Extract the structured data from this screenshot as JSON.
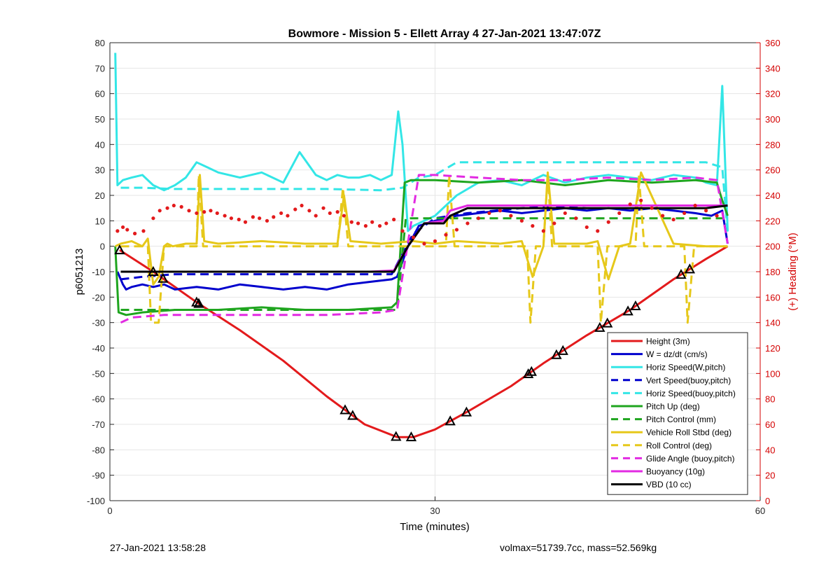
{
  "chart_data": {
    "type": "line",
    "title": "Bowmore - Mission 5 - Ellett Array 4 27-Jan-2021 13:47:07Z",
    "xlabel": "Time (minutes)",
    "ylabel": "p6051213",
    "y2label": "(+) Heading (°M)",
    "xlim": [
      0,
      60
    ],
    "ylim": [
      -100,
      80
    ],
    "y2lim": [
      0,
      360
    ],
    "xticks": [
      0,
      30,
      60
    ],
    "yticks": [
      80,
      70,
      60,
      50,
      40,
      30,
      20,
      10,
      0,
      -10,
      -20,
      -30,
      -40,
      -50,
      -60,
      -70,
      -80,
      -90,
      -100
    ],
    "y2ticks": [
      360,
      340,
      320,
      300,
      280,
      260,
      240,
      220,
      200,
      180,
      160,
      140,
      120,
      100,
      80,
      60,
      40,
      20,
      0
    ],
    "grid": "on",
    "legend_position": "bottom-right",
    "colors": {
      "red": "#e31a1c",
      "blue": "#0000cd",
      "cyan": "#33e6e6",
      "green": "#1fa51f",
      "yellow": "#e6c81a",
      "magenta": "#e22ae2",
      "black": "#000000",
      "heading_dots": "#e31a1c",
      "right_axis": "#d40000"
    },
    "series": [
      {
        "name": "Height (3m)",
        "color": "#e31a1c",
        "dash": false,
        "x": [
          0.9,
          4,
          8,
          12,
          16,
          20,
          23.5,
          26.5,
          28,
          30,
          33,
          37,
          40,
          44,
          48,
          52,
          55,
          57
        ],
        "y": [
          -1.5,
          -10,
          -22,
          -33,
          -45,
          -59,
          -70,
          -75,
          -75,
          -72,
          -65,
          -55,
          -46,
          -35,
          -25,
          -13,
          -5,
          0
        ]
      },
      {
        "name": "W = dz/dt (cm/s)",
        "color": "#0000cd",
        "dash": false,
        "x": [
          0.7,
          1.2,
          1.5,
          2,
          3,
          4,
          5,
          6,
          8,
          10,
          12,
          14,
          16,
          18,
          20,
          22,
          24,
          26,
          26.5,
          27.5,
          28.5,
          30,
          31,
          32,
          34,
          36,
          38,
          40,
          42,
          44,
          46,
          48,
          50,
          52,
          54,
          55.5,
          56.5,
          57
        ],
        "y": [
          -10,
          -15,
          -17,
          -16,
          -15,
          -16,
          -15,
          -17,
          -16,
          -17,
          -15,
          -16,
          -17,
          -16,
          -17,
          -15,
          -14,
          -13,
          -12,
          0,
          8,
          10,
          11,
          12,
          13,
          14,
          13,
          14,
          15,
          14,
          15,
          14,
          15,
          14,
          13,
          12,
          14,
          1
        ]
      },
      {
        "name": "Horiz Speed(W,pitch)",
        "color": "#33e6e6",
        "dash": false,
        "x": [
          0.5,
          0.7,
          1.2,
          2,
          3,
          4,
          5,
          6,
          7,
          8,
          9,
          10,
          12,
          14,
          16,
          17.5,
          19,
          20,
          21,
          22,
          23,
          24,
          25,
          26,
          26.6,
          27,
          27.5,
          28,
          29,
          30,
          32,
          34,
          36,
          38,
          40,
          42,
          44,
          46,
          48,
          50,
          52,
          54,
          55,
          56,
          56.5,
          57
        ],
        "y": [
          76,
          24,
          26,
          27,
          28,
          24,
          22,
          24,
          27,
          33,
          31,
          29,
          27,
          29,
          25,
          37,
          28,
          26,
          28,
          27,
          27,
          28,
          26,
          28,
          53,
          40,
          6,
          8,
          10,
          12,
          20,
          25,
          26,
          24,
          28,
          25,
          27,
          28,
          27,
          26,
          28,
          27,
          25,
          24,
          63,
          6
        ]
      },
      {
        "name": "Vert Speed(buoy,pitch)",
        "color": "#0000cd",
        "dash": true,
        "x": [
          1,
          3,
          6,
          10,
          15,
          20,
          26,
          28,
          30,
          33,
          38,
          44,
          50,
          55,
          57
        ],
        "y": [
          -13,
          -12,
          -11,
          -11,
          -11,
          -11,
          -11,
          5,
          11,
          13,
          15,
          16,
          16,
          16,
          16
        ]
      },
      {
        "name": "Horiz Speed(buoy,pitch)",
        "color": "#33e6e6",
        "dash": true,
        "x": [
          1,
          3,
          6,
          10,
          15,
          20,
          25,
          27,
          28.5,
          30,
          32,
          34,
          38,
          44,
          50,
          55,
          56.5,
          57
        ],
        "y": [
          23,
          23,
          22.5,
          22.5,
          22.5,
          22.5,
          22,
          23,
          27,
          28,
          33,
          33,
          33,
          33,
          33,
          33,
          31,
          5
        ]
      },
      {
        "name": "Pitch Up (deg)",
        "color": "#1fa51f",
        "dash": false,
        "x": [
          0.5,
          0.8,
          1.5,
          3,
          6,
          10,
          14,
          18,
          22,
          26,
          26.5,
          27.2,
          27.8,
          30,
          34,
          38,
          42,
          46,
          50,
          54,
          56,
          56.5,
          57
        ],
        "y": [
          0,
          -26,
          -27,
          -26,
          -25,
          -25,
          -24,
          -25,
          -25,
          -24,
          -22,
          25,
          26,
          26,
          25,
          26,
          24,
          26,
          25,
          26,
          25,
          18,
          12
        ]
      },
      {
        "name": "Pitch Control (mm)",
        "color": "#1fa51f",
        "dash": true,
        "x": [
          1,
          6,
          12,
          18,
          24,
          26.5,
          27.3,
          30,
          36,
          42,
          48,
          54,
          57
        ],
        "y": [
          -25,
          -25,
          -25,
          -25,
          -25,
          -25,
          11,
          11,
          11,
          11,
          11,
          11,
          11
        ]
      },
      {
        "name": "Vehicle Roll Stbd (deg)",
        "color": "#e6c81a",
        "dash": false,
        "x": [
          0.5,
          1,
          2,
          3,
          3.5,
          4,
          4.5,
          5,
          5.3,
          5.8,
          7,
          8,
          8.3,
          8.7,
          10,
          14,
          18,
          21,
          21.6,
          22.2,
          25,
          28,
          30,
          32,
          36,
          38,
          39,
          40,
          40.4,
          41,
          44,
          45,
          46,
          47,
          48,
          49,
          52,
          55,
          57
        ],
        "y": [
          0,
          1,
          2,
          0,
          3,
          -15,
          -12,
          0,
          1,
          0,
          1,
          1,
          28,
          2,
          1,
          2,
          1,
          1,
          20,
          2,
          1,
          2,
          1,
          2,
          1,
          2,
          -12,
          0,
          29,
          1,
          1,
          2,
          -13,
          0,
          1,
          29,
          1,
          0,
          0
        ]
      },
      {
        "name": "Roll Control (deg)",
        "color": "#e6c81a",
        "dash": true,
        "x": [
          1,
          3.5,
          3.8,
          4.5,
          5,
          8,
          8.2,
          8.6,
          10,
          21,
          21.5,
          22,
          25,
          31,
          31.3,
          31.8,
          38.5,
          38.8,
          39.3,
          40,
          40.4,
          40.8,
          45,
          45.3,
          45.9,
          48.5,
          48.8,
          49.3,
          53,
          53.3,
          53.9,
          57
        ],
        "y": [
          0,
          0,
          -30,
          -30,
          0,
          0,
          28,
          0,
          0,
          0,
          23,
          0,
          0,
          0,
          28,
          0,
          0,
          -30,
          0,
          0,
          28,
          0,
          0,
          -30,
          0,
          0,
          28,
          0,
          0,
          -30,
          0,
          0
        ]
      },
      {
        "name": "Glide Angle (buoy,pitch)",
        "color": "#e22ae2",
        "dash": true,
        "x": [
          1,
          2,
          5,
          10,
          15,
          20,
          25,
          26.5,
          28.5,
          30,
          34,
          38,
          42,
          46,
          50,
          54,
          56,
          57
        ],
        "y": [
          -30,
          -28,
          -27,
          -27,
          -27,
          -27,
          -26,
          -25,
          28,
          28,
          27,
          26,
          26,
          27,
          26,
          27,
          26,
          1
        ]
      },
      {
        "name": "Buoyancy (10g)",
        "color": "#e22ae2",
        "dash": false,
        "x": [
          1,
          6,
          12,
          18,
          24,
          26.2,
          27.5,
          29,
          30.8,
          31.4,
          33,
          38,
          44,
          50,
          55,
          57
        ],
        "y": [
          -10,
          -10,
          -10,
          -10,
          -10,
          -9.5,
          0,
          9,
          10,
          14,
          16,
          16,
          16,
          16,
          16,
          16
        ]
      },
      {
        "name": "VBD (10 cc)",
        "color": "#000000",
        "dash": false,
        "x": [
          1,
          6,
          12,
          18,
          24,
          26.2,
          27.5,
          29,
          30.8,
          31.4,
          33,
          38,
          44,
          50,
          55,
          57
        ],
        "y": [
          -10,
          -10,
          -10,
          -10,
          -10,
          -10,
          0,
          9,
          9,
          12,
          15,
          15,
          15,
          15,
          15,
          16
        ]
      }
    ],
    "markers_on_height": {
      "shape": "triangle",
      "x": [
        0.9,
        4,
        4.9,
        8,
        8.2,
        21.7,
        22.4,
        26.4,
        27.8,
        31.4,
        32.9,
        38.6,
        38.9,
        41.2,
        41.8,
        45.2,
        45.9,
        47.8,
        48.5,
        52.7,
        53.5
      ]
    },
    "heading_scatter": {
      "axis": "right",
      "x": [
        0.7,
        1.2,
        1.6,
        2.3,
        3.1,
        4.0,
        4.6,
        5.3,
        5.9,
        6.6,
        7.3,
        8.0,
        8.7,
        9.3,
        9.9,
        10.6,
        11.2,
        11.9,
        12.5,
        13.2,
        13.8,
        14.5,
        15.1,
        15.8,
        16.4,
        17.1,
        17.7,
        18.4,
        19.0,
        19.7,
        20.3,
        21.0,
        21.6,
        22.3,
        22.9,
        23.6,
        24.2,
        24.9,
        25.5,
        26.2,
        27.0,
        28.0,
        29.0,
        30.0,
        31.0,
        32.0,
        33.0,
        34.0,
        35.0,
        36.0,
        37.0,
        38.0,
        39.0,
        40.0,
        41.0,
        42.0,
        43.0,
        44.0,
        45.0,
        46.0,
        47.0,
        48.0,
        49.0,
        50.0,
        51.0,
        52.0,
        53.0,
        54.0,
        55.0,
        56.0
      ],
      "y": [
        212,
        215,
        213,
        210,
        212,
        222,
        228,
        230,
        232,
        231,
        228,
        226,
        227,
        228,
        226,
        224,
        222,
        221,
        219,
        223,
        222,
        220,
        223,
        226,
        224,
        229,
        232,
        228,
        224,
        230,
        226,
        227,
        224,
        219,
        218,
        216,
        219,
        216,
        218,
        221,
        212,
        207,
        202,
        204,
        209,
        213,
        218,
        222,
        226,
        228,
        224,
        220,
        216,
        212,
        218,
        226,
        222,
        215,
        212,
        219,
        226,
        233,
        236,
        230,
        224,
        221,
        226,
        232,
        228,
        224
      ]
    }
  },
  "footer": {
    "left": "27-Jan-2021 13:58:28",
    "right": "volmax=51739.7cc, mass=52.569kg"
  }
}
